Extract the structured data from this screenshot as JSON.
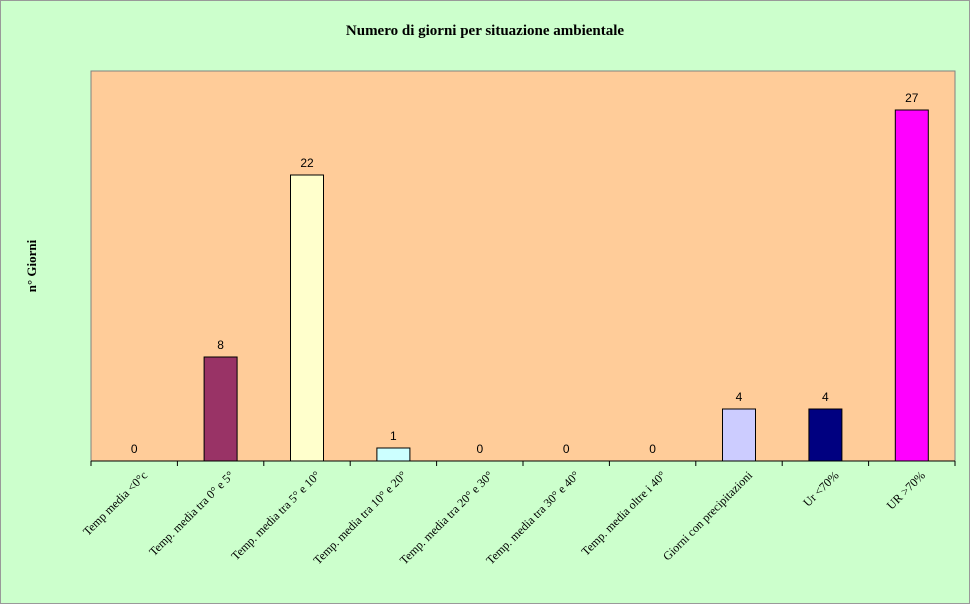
{
  "chart_data": {
    "type": "bar",
    "title": "Numero di giorni per situazione ambientale",
    "xlabel": "",
    "ylabel": "n° Giorni",
    "ylim": [
      0,
      30
    ],
    "grid": false,
    "legend": "none",
    "categories": [
      "Temp media <0°c",
      "Temp. media tra 0° e 5°",
      "Temp. media tra 5° e 10°",
      "Temp. media tra 10° e 20°",
      "Temp. media tra 20° e 30°",
      "Temp. media tra 30° e 40°",
      "Temp. media oltre i 40°",
      "Giorni con precipitazioni",
      "Ur  <70%",
      "UR >70%"
    ],
    "values": [
      0,
      8,
      22,
      1,
      0,
      0,
      0,
      4,
      4,
      27
    ],
    "colors": [
      "#ccffcc",
      "#993366",
      "#ffffcc",
      "#ccffff",
      "#ccffcc",
      "#ccffcc",
      "#ccffcc",
      "#ccccff",
      "#000080",
      "#ff00ff"
    ],
    "plot_background": "#ffcc99",
    "chart_background": "#ccffcc"
  }
}
